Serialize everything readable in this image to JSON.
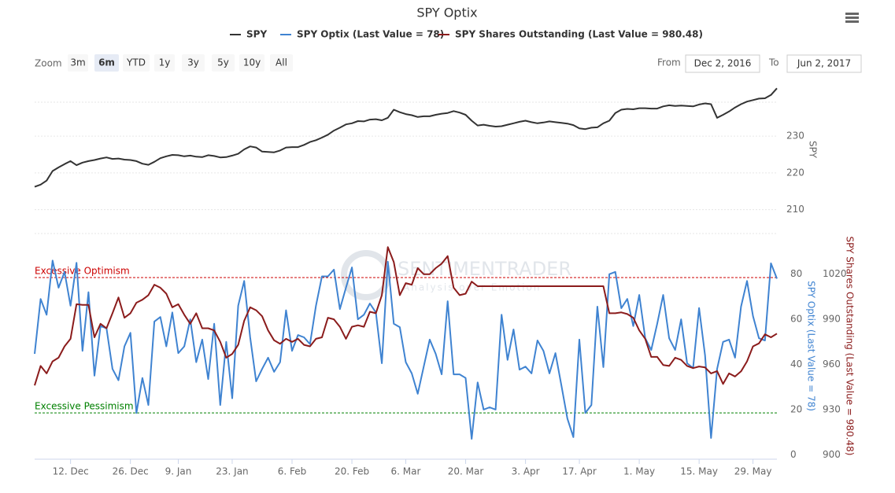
{
  "chart_data": [
    {
      "type": "line",
      "ylabel": "SPY",
      "ylim": [
        205,
        245
      ],
      "yticks": [
        210,
        220,
        230
      ],
      "grid": true,
      "series": [
        {
          "name": "SPY",
          "color": "#333333",
          "values": [
            216.2,
            216.8,
            217.9,
            220.5,
            221.5,
            222.4,
            223.2,
            222.1,
            222.8,
            223.2,
            223.5,
            223.9,
            224.2,
            223.8,
            223.9,
            223.6,
            223.5,
            223.2,
            222.5,
            222.2,
            223,
            224,
            224.5,
            224.9,
            224.8,
            224.5,
            224.7,
            224.4,
            224.3,
            224.8,
            224.6,
            224.2,
            224.3,
            224.7,
            225.2,
            226.4,
            227.2,
            226.9,
            225.8,
            225.7,
            225.6,
            226.1,
            226.9,
            227,
            227.0,
            227.6,
            228.4,
            228.9,
            229.6,
            230.4,
            231.5,
            232.3,
            233.2,
            233.5,
            234.1,
            234,
            234.5,
            234.6,
            234.3,
            235,
            237.2,
            236.5,
            236,
            235.7,
            235.2,
            235.4,
            235.4,
            235.8,
            236.1,
            236.3,
            236.8,
            236.4,
            235.8,
            234.2,
            232.9,
            233.1,
            232.8,
            232.6,
            232.7,
            233.1,
            233.5,
            233.9,
            234.2,
            233.8,
            233.5,
            233.7,
            234,
            233.8,
            233.6,
            233.4,
            233.0,
            232.1,
            231.9,
            232.3,
            232.4,
            233.5,
            234.2,
            236.3,
            237.2,
            237.4,
            237.3,
            237.6,
            237.6,
            237.5,
            237.5,
            238.1,
            238.4,
            238.2,
            238.3,
            238.2,
            238.1,
            238.6,
            238.9,
            238.7,
            235,
            235.8,
            236.7,
            237.8,
            238.7,
            239.4,
            239.8,
            240.2,
            240.3,
            241.2,
            243
          ]
        }
      ]
    },
    {
      "type": "line",
      "ylabel": "SPY Optix (Last Value = 78)",
      "y2label": "SPY Shares Outstanding (Last Value = 980.48)",
      "ylim": [
        -2,
        98
      ],
      "yticks": [
        0,
        20,
        40,
        60,
        80
      ],
      "y2lim": [
        897,
        1047
      ],
      "y2ticks": [
        900,
        930,
        960,
        990,
        1020
      ],
      "categories": [
        null,
        null,
        null,
        null,
        null,
        null,
        "12. Dec",
        null,
        null,
        null,
        null,
        null,
        null,
        null,
        null,
        null,
        "26. Dec",
        null,
        null,
        null,
        null,
        null,
        null,
        null,
        "9. Jan",
        null,
        null,
        null,
        null,
        null,
        null,
        null,
        null,
        "23. Jan",
        null,
        null,
        null,
        null,
        null,
        null,
        null,
        null,
        null,
        "6. Feb",
        null,
        null,
        null,
        null,
        null,
        null,
        null,
        null,
        null,
        "20. Feb",
        null,
        null,
        null,
        null,
        null,
        null,
        null,
        null,
        "6. Mar",
        null,
        null,
        null,
        null,
        null,
        null,
        null,
        null,
        null,
        "20. Mar",
        null,
        null,
        null,
        null,
        null,
        null,
        null,
        null,
        null,
        "3. Apr",
        null,
        null,
        null,
        null,
        null,
        null,
        null,
        null,
        "17. Apr",
        null,
        null,
        null,
        null,
        null,
        null,
        null,
        null,
        null,
        "1. May",
        null,
        null,
        null,
        null,
        null,
        null,
        null,
        null,
        null,
        "15. May",
        null,
        null,
        null,
        null,
        null,
        null,
        null,
        null,
        "29. May",
        null,
        null,
        null,
        null
      ],
      "bands": [
        {
          "label": "Excessive Optimism",
          "value": 78.5,
          "color": "#cc0000"
        },
        {
          "label": "Excessive Pessimism",
          "value": 18.5,
          "color": "#008000"
        }
      ],
      "series": [
        {
          "name": "SPY Optix (Last Value = 78)",
          "color": "#3f83d1",
          "values": [
            44.7,
            69,
            62,
            86,
            74,
            81,
            66,
            85,
            46,
            72,
            35,
            57,
            56,
            38,
            33,
            48,
            54,
            18.5,
            34,
            22,
            59,
            61,
            48,
            63,
            45,
            48,
            60,
            41,
            51,
            33.5,
            58,
            22,
            50,
            25,
            66,
            77,
            52,
            32.5,
            38,
            43,
            36.7,
            41,
            64,
            46,
            53,
            52,
            49,
            66,
            79,
            79,
            82,
            64.5,
            74,
            83,
            60,
            62,
            67,
            63,
            40.5,
            85.5,
            58,
            56.5,
            41,
            36,
            27,
            39,
            51,
            44.7,
            35.6,
            68,
            35.6,
            35.6,
            34,
            7,
            32,
            20,
            21,
            20,
            62,
            42,
            55.5,
            37.7,
            39,
            36,
            50.6,
            46,
            36,
            45,
            30.7,
            16,
            7.8,
            51,
            18.5,
            22,
            65.6,
            38.8,
            80,
            81,
            64.9,
            69,
            57,
            70.8,
            51.6,
            46.4,
            58,
            70.8,
            51.6,
            46.4,
            60,
            40.5,
            38.4,
            65,
            44,
            7.4,
            38,
            50,
            51,
            43,
            65.6,
            77,
            61.4,
            51.6,
            50.6,
            84.8,
            78
          ]
        },
        {
          "name": "SPY Shares Outstanding (Last Value = 980.48)",
          "color": "#8b1c1c",
          "axis": "y2",
          "values": [
            946,
            959,
            954,
            962,
            964.5,
            972,
            977,
            1000,
            999.6,
            999.6,
            978,
            987,
            984,
            994,
            1004.5,
            991,
            994,
            1001,
            1003,
            1006,
            1013,
            1011,
            1007,
            998,
            1000,
            993,
            987,
            994,
            984,
            984,
            982.6,
            975,
            964.5,
            967,
            973,
            989,
            998,
            996,
            992,
            982.6,
            976,
            973.7,
            977,
            975,
            977,
            973,
            972,
            977,
            978,
            991,
            990,
            985,
            977,
            985,
            986,
            985,
            995,
            994,
            1006,
            1038,
            1028,
            1006,
            1014,
            1013,
            1024,
            1020,
            1020,
            1024,
            1027,
            1032,
            1011,
            1006,
            1007,
            1015,
            1012,
            1012,
            1012,
            1012,
            1012,
            1012,
            1012,
            1012,
            1012,
            1012,
            1012,
            1012,
            1012,
            1012,
            1012,
            1012,
            1012,
            1012,
            1012,
            1012,
            1012,
            1012,
            994,
            994,
            994.6,
            993.5,
            991,
            982.6,
            977,
            965,
            965,
            959.6,
            959,
            964.5,
            963,
            959,
            957.5,
            958.6,
            958,
            954,
            955.6,
            947,
            954,
            952,
            955.4,
            962,
            972,
            974,
            980,
            978,
            980.48
          ]
        }
      ]
    }
  ],
  "title": "SPY Optix",
  "watermark": {
    "name": "SENTIMENTRADER",
    "tagline": "Analysis over Emotion"
  },
  "range_selector": {
    "label": "Zoom",
    "buttons": [
      "3m",
      "6m",
      "YTD",
      "1y",
      "3y",
      "5y",
      "10y",
      "All"
    ],
    "selected": 1,
    "from_label": "From",
    "from": "Dec 2, 2016",
    "to_label": "To",
    "to": "Jun 2, 2017"
  }
}
